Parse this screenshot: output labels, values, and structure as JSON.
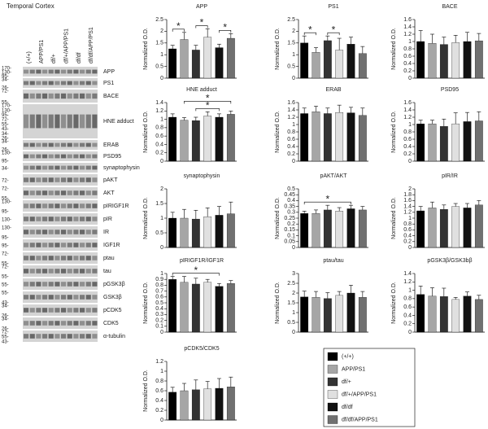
{
  "blot": {
    "title": "Temporal Cortex",
    "columns": [
      "(+/+)",
      "APP/PS1",
      "df/+",
      "df/+/APP/PS1",
      "df/df",
      "df/df/APP/PS1"
    ],
    "rows": [
      {
        "label": "APP",
        "markers": [
          "170-",
          "130-",
          "95-"
        ]
      },
      {
        "label": "PS1",
        "markers": [
          "34-",
          "26-"
        ]
      },
      {
        "label": "BACE",
        "markers": [
          "72-",
          "55-"
        ]
      },
      {
        "label": "HNE adduct",
        "markers": [
          "170-",
          "130-",
          "95-",
          "72-",
          "55-",
          "43-",
          "34-",
          "26-"
        ]
      },
      {
        "label": "ERAB",
        "markers": [
          "34-",
          "26-"
        ]
      },
      {
        "label": "PSD95",
        "markers": [
          "130-",
          "95-"
        ]
      },
      {
        "label": "synaptophysin",
        "markers": [
          "34-"
        ]
      },
      {
        "label": "pAKT",
        "markers": [
          "72-"
        ]
      },
      {
        "label": "AKT",
        "markers": [
          "72-",
          "55-"
        ]
      },
      {
        "label": "pIRIGF1R",
        "markers": [
          "130-",
          "95-"
        ]
      },
      {
        "label": "pIR",
        "markers": [
          "130-"
        ]
      },
      {
        "label": "IR",
        "markers": [
          "130-",
          "95-"
        ]
      },
      {
        "label": "IGF1R",
        "markers": [
          "95-"
        ]
      },
      {
        "label": "ptau",
        "markers": [
          "72-",
          "55-"
        ]
      },
      {
        "label": "tau",
        "markers": [
          "72-",
          "55-"
        ]
      },
      {
        "label": "pGSK3β",
        "markers": [
          "55-"
        ]
      },
      {
        "label": "GSK3β",
        "markers": [
          "55-",
          "43-"
        ]
      },
      {
        "label": "pCDK5",
        "markers": [
          "34-",
          "26-"
        ]
      },
      {
        "label": "CDK5",
        "markers": [
          "34-",
          "26-"
        ]
      },
      {
        "label": "α-tubulin",
        "markers": [
          "72-",
          "55-",
          "43-"
        ]
      }
    ]
  },
  "legend": [
    {
      "name": "(+/+)",
      "color": "#000000"
    },
    {
      "name": "APP/PS1",
      "color": "#a6a6a6"
    },
    {
      "name": "df/+",
      "color": "#333333"
    },
    {
      "name": "df/+/APP/PS1",
      "color": "#e0e0e0"
    },
    {
      "name": "df/df",
      "color": "#111111"
    },
    {
      "name": "df/df/APP/PS1",
      "color": "#707070"
    }
  ],
  "chart_data": [
    {
      "type": "bar",
      "title": "APP",
      "ylabel": "Normalized O.D.",
      "ylim": [
        0,
        2.5
      ],
      "yticks": [
        0,
        0.5,
        1,
        1.5,
        2,
        2.5
      ],
      "values": [
        1.25,
        1.65,
        1.2,
        1.75,
        1.3,
        1.7
      ],
      "errors": [
        0.15,
        0.3,
        0.2,
        0.35,
        0.15,
        0.2
      ],
      "significance": [
        {
          "label": "*",
          "between": [
            0,
            1
          ]
        },
        {
          "label": "*",
          "between": [
            2,
            3
          ]
        },
        {
          "label": "*",
          "between": [
            4,
            5
          ]
        }
      ]
    },
    {
      "type": "bar",
      "title": "PS1",
      "ylabel": "Normalized O.D.",
      "ylim": [
        0,
        2.5
      ],
      "yticks": [
        0,
        0.5,
        1,
        1.5,
        2,
        2.5
      ],
      "values": [
        1.5,
        1.1,
        1.6,
        1.2,
        1.45,
        1.05
      ],
      "errors": [
        0.3,
        0.2,
        0.2,
        0.5,
        0.3,
        0.3
      ],
      "significance": [
        {
          "label": "*",
          "between": [
            0,
            1
          ]
        },
        {
          "label": "*",
          "between": [
            2,
            3
          ]
        }
      ]
    },
    {
      "type": "bar",
      "title": "BACE",
      "ylabel": "Normalized O.D.",
      "ylim": [
        0,
        1.6
      ],
      "yticks": [
        0,
        0.2,
        0.4,
        0.6,
        0.8,
        1,
        1.2,
        1.4,
        1.6
      ],
      "values": [
        1.0,
        0.95,
        0.92,
        0.97,
        1.0,
        1.02
      ],
      "errors": [
        0.3,
        0.25,
        0.2,
        0.2,
        0.25,
        0.2
      ]
    },
    {
      "type": "bar",
      "title": "HNE adduct",
      "ylabel": "Normalized O.D.",
      "ylim": [
        0,
        1.4
      ],
      "yticks": [
        0,
        0.2,
        0.4,
        0.6,
        0.8,
        1,
        1.2,
        1.4
      ],
      "values": [
        1.05,
        0.98,
        0.97,
        1.08,
        1.05,
        1.12
      ],
      "errors": [
        0.08,
        0.06,
        0.08,
        0.1,
        0.08,
        0.08
      ],
      "significance": [
        {
          "label": "*",
          "between": [
            1,
            5
          ]
        },
        {
          "label": "*",
          "between": [
            2,
            4
          ]
        }
      ]
    },
    {
      "type": "bar",
      "title": "ERAB",
      "ylabel": "Normalized O.D.",
      "ylim": [
        0,
        1.6
      ],
      "yticks": [
        0,
        0.2,
        0.4,
        0.6,
        0.8,
        1,
        1.2,
        1.4,
        1.6
      ],
      "values": [
        1.3,
        1.35,
        1.3,
        1.33,
        1.32,
        1.25
      ],
      "errors": [
        0.15,
        0.15,
        0.15,
        0.2,
        0.15,
        0.2
      ]
    },
    {
      "type": "bar",
      "title": "PSD95",
      "ylabel": "Normalized O.D.",
      "ylim": [
        0,
        1.6
      ],
      "yticks": [
        0,
        0.2,
        0.4,
        0.6,
        0.8,
        1,
        1.2,
        1.4,
        1.6
      ],
      "values": [
        1.02,
        1.02,
        0.95,
        1.02,
        1.08,
        1.1
      ],
      "errors": [
        0.1,
        0.1,
        0.2,
        0.3,
        0.25,
        0.25
      ]
    },
    {
      "type": "bar",
      "title": "synaptophysin",
      "ylabel": "Normalized O.D.",
      "ylim": [
        0,
        2
      ],
      "yticks": [
        0,
        0.5,
        1,
        1.5,
        2
      ],
      "values": [
        1.0,
        1.0,
        0.97,
        1.05,
        1.1,
        1.15
      ],
      "errors": [
        0.2,
        0.3,
        0.3,
        0.3,
        0.3,
        0.4
      ]
    },
    {
      "type": "bar",
      "title": "pAKT/AKT",
      "ylabel": "Normalized O.D.",
      "ylim": [
        0,
        0.5
      ],
      "yticks": [
        0,
        0.05,
        0.1,
        0.15,
        0.2,
        0.25,
        0.3,
        0.35,
        0.4,
        0.45,
        0.5
      ],
      "values": [
        0.29,
        0.29,
        0.32,
        0.31,
        0.33,
        0.32
      ],
      "errors": [
        0.02,
        0.03,
        0.04,
        0.03,
        0.03,
        0.03
      ],
      "significance": [
        {
          "label": "*",
          "between": [
            0,
            4
          ]
        }
      ]
    },
    {
      "type": "bar",
      "title": "pIR/IR",
      "ylabel": "Normalized O.D.",
      "ylim": [
        0,
        2
      ],
      "yticks": [
        0,
        0.2,
        0.4,
        0.6,
        0.8,
        1,
        1.2,
        1.4,
        1.6,
        1.8,
        2
      ],
      "values": [
        1.25,
        1.35,
        1.3,
        1.4,
        1.35,
        1.45
      ],
      "errors": [
        0.15,
        0.2,
        0.15,
        0.1,
        0.15,
        0.15
      ]
    },
    {
      "type": "bar",
      "title": "pIRIGF1R/IGF1R",
      "ylabel": "Normalized O.D.",
      "ylim": [
        0,
        1
      ],
      "yticks": [
        0,
        0.1,
        0.2,
        0.3,
        0.4,
        0.5,
        0.6,
        0.7,
        0.8,
        0.9,
        1
      ],
      "values": [
        0.9,
        0.85,
        0.82,
        0.85,
        0.78,
        0.83
      ],
      "errors": [
        0.05,
        0.1,
        0.1,
        0.05,
        0.05,
        0.05
      ],
      "significance": [
        {
          "label": "*",
          "between": [
            0,
            4
          ]
        }
      ]
    },
    {
      "type": "bar",
      "title": "ptau/tau",
      "ylabel": "Normalized O.D.",
      "ylim": [
        0,
        3
      ],
      "yticks": [
        0,
        0.5,
        1,
        1.5,
        2,
        2.5,
        3
      ],
      "values": [
        1.8,
        1.78,
        1.72,
        1.88,
        2.0,
        1.78
      ],
      "errors": [
        0.3,
        0.3,
        0.3,
        0.2,
        0.4,
        0.3
      ]
    },
    {
      "type": "bar",
      "title": "pGSK3β/GSK3bβ",
      "ylabel": "Normalized O.D.",
      "ylim": [
        0,
        1.4
      ],
      "yticks": [
        0,
        0.2,
        0.4,
        0.6,
        0.8,
        1,
        1.2,
        1.4
      ],
      "values": [
        0.9,
        0.86,
        0.85,
        0.78,
        0.86,
        0.78
      ],
      "errors": [
        0.2,
        0.2,
        0.2,
        0.05,
        0.1,
        0.1
      ]
    },
    {
      "type": "bar",
      "title": "pCDK5/CDK5",
      "ylabel": "Normalized O.D.",
      "ylim": [
        0,
        1.2
      ],
      "yticks": [
        0,
        0.2,
        0.4,
        0.6,
        0.8,
        1,
        1.2
      ],
      "values": [
        0.57,
        0.6,
        0.62,
        0.64,
        0.65,
        0.68
      ],
      "errors": [
        0.1,
        0.15,
        0.2,
        0.15,
        0.2,
        0.2
      ]
    }
  ]
}
